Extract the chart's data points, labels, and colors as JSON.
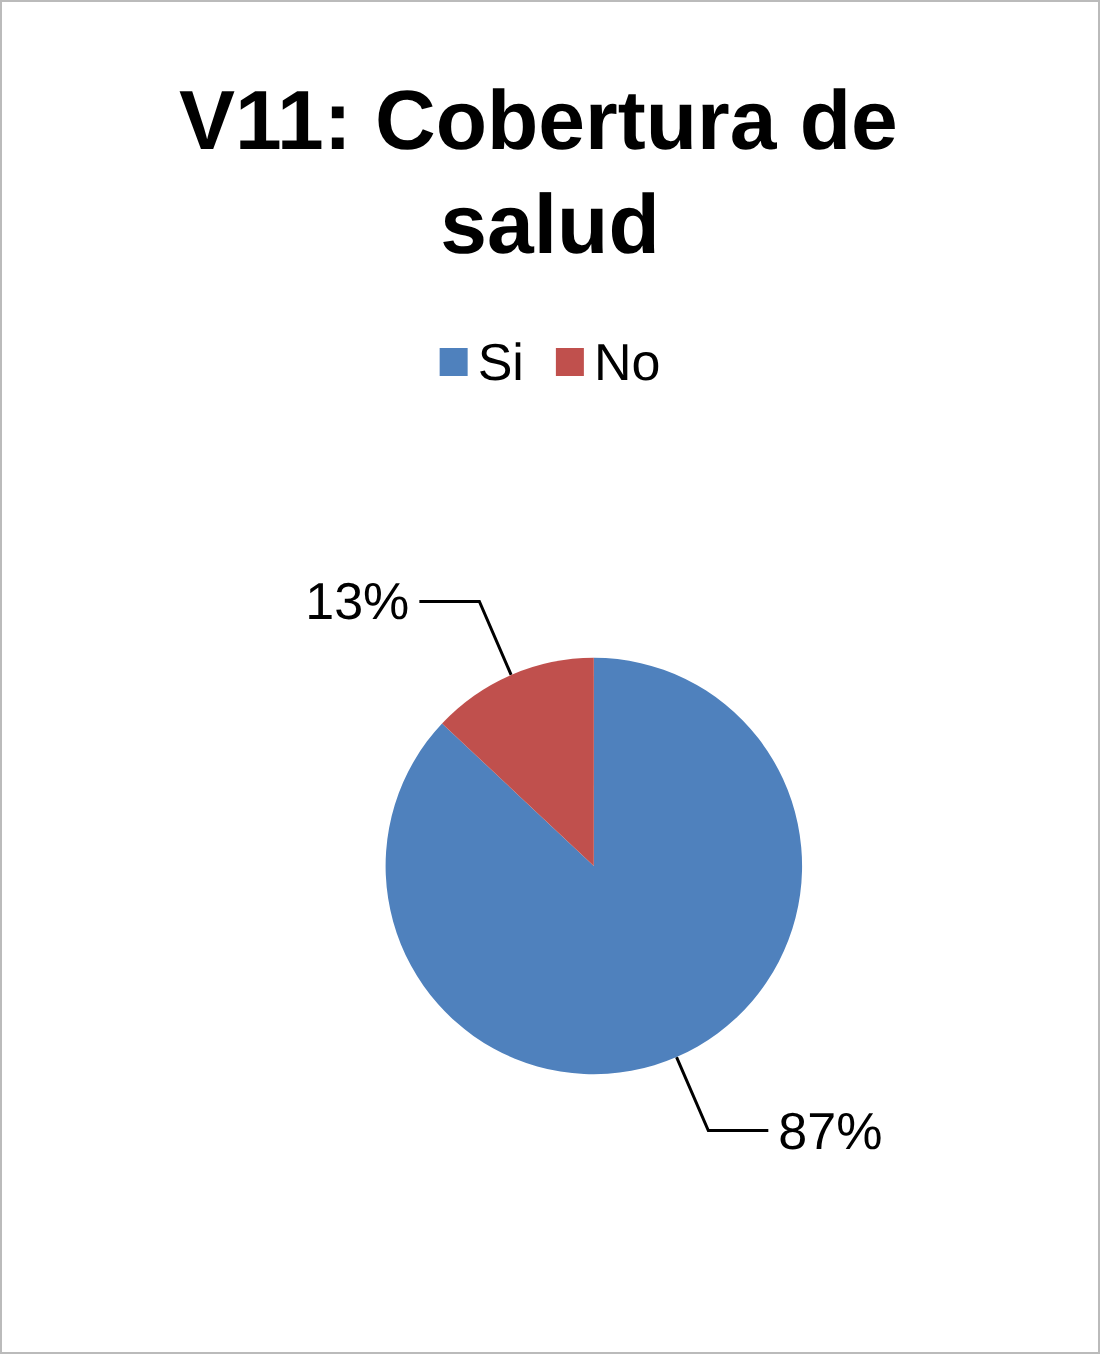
{
  "chart_data": {
    "type": "pie",
    "title": "V11: Cobertura de salud",
    "categories": [
      "Si",
      "No"
    ],
    "values": [
      87,
      13
    ],
    "colors": [
      "#4f81bd",
      "#c0504d"
    ],
    "value_labels": [
      "87%",
      "13%"
    ],
    "legend": "top"
  }
}
